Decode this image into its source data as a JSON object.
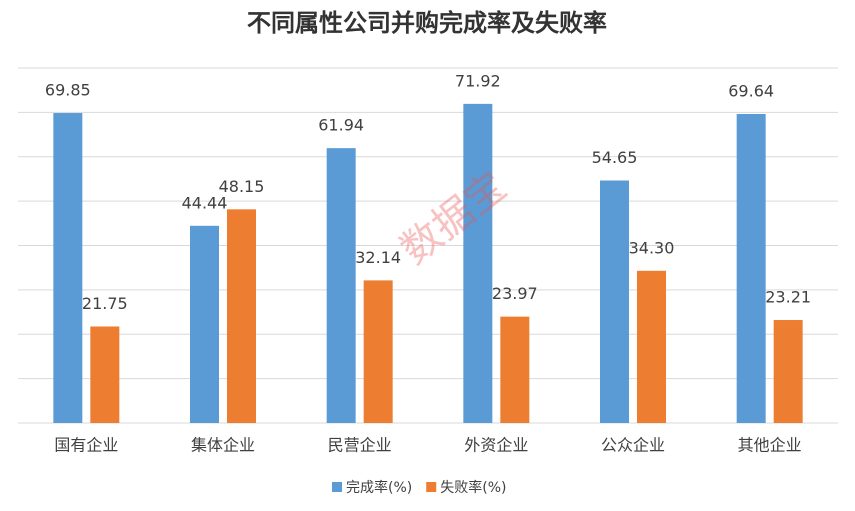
{
  "chart_data": {
    "type": "bar",
    "title": "不同属性公司并购完成率及失败率",
    "categories": [
      "国有企业",
      "集体企业",
      "民营企业",
      "外资企业",
      "公众企业",
      "其他企业"
    ],
    "series": [
      {
        "name": "完成率(%)",
        "color": "#5b9bd5",
        "values": [
          69.85,
          44.44,
          61.94,
          71.92,
          54.65,
          69.64
        ],
        "value_labels": [
          "69.85",
          "44.44",
          "61.94",
          "71.92",
          "54.65",
          "69.64"
        ]
      },
      {
        "name": "失败率(%)",
        "color": "#ed7d31",
        "values": [
          21.75,
          48.15,
          32.14,
          23.97,
          34.3,
          23.21
        ],
        "value_labels": [
          "21.75",
          "48.15",
          "32.14",
          "23.97",
          "34.30",
          "23.21"
        ]
      }
    ],
    "ylim": [
      0,
      80
    ],
    "yticks": [
      0,
      10,
      20,
      30,
      40,
      50,
      60,
      70,
      80
    ],
    "grid": true,
    "legend": "bottom",
    "watermark": "数据宝"
  }
}
